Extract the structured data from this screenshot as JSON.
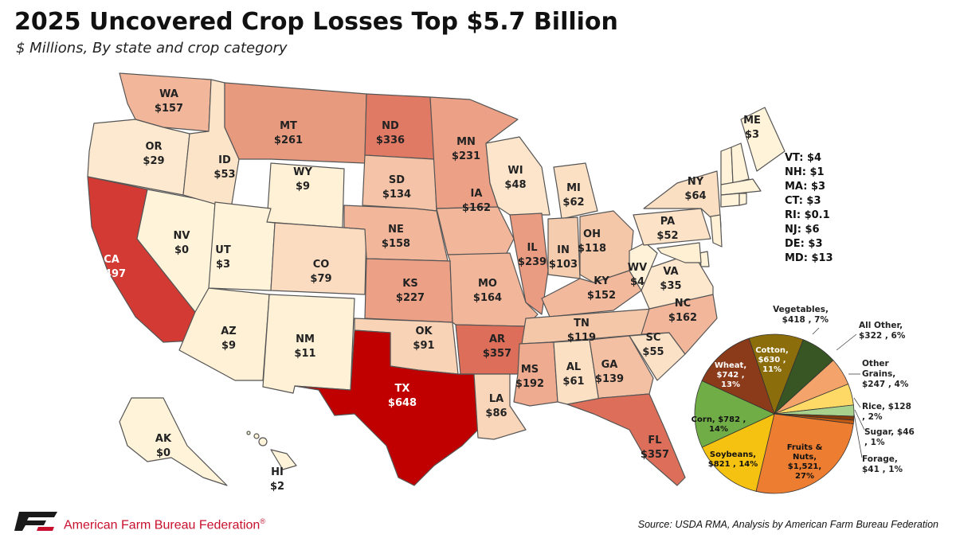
{
  "title": "2025 Uncovered Crop Losses Top $5.7 Billion",
  "subtitle": "$ Millions, By state and crop category",
  "states": [
    {
      "abbr": "WA",
      "value": "$157",
      "color": "#f2b79b"
    },
    {
      "abbr": "OR",
      "value": "$29",
      "color": "#fde9cf"
    },
    {
      "abbr": "CA",
      "value": "$497",
      "color": "#d33a33"
    },
    {
      "abbr": "NV",
      "value": "$0",
      "color": "#fff3da"
    },
    {
      "abbr": "ID",
      "value": "$53",
      "color": "#fce4c9"
    },
    {
      "abbr": "MT",
      "value": "$261",
      "color": "#e89a7f"
    },
    {
      "abbr": "WY",
      "value": "$9",
      "color": "#fff1d6"
    },
    {
      "abbr": "UT",
      "value": "$3",
      "color": "#fff3da"
    },
    {
      "abbr": "AZ",
      "value": "$9",
      "color": "#fff1d6"
    },
    {
      "abbr": "CO",
      "value": "$79",
      "color": "#fbdcc0"
    },
    {
      "abbr": "NM",
      "value": "$11",
      "color": "#fff1d6"
    },
    {
      "abbr": "ND",
      "value": "$336",
      "color": "#e07a64"
    },
    {
      "abbr": "SD",
      "value": "$134",
      "color": "#f5c4a8"
    },
    {
      "abbr": "NE",
      "value": "$158",
      "color": "#f2b79b"
    },
    {
      "abbr": "KS",
      "value": "$227",
      "color": "#eca086"
    },
    {
      "abbr": "OK",
      "value": "$91",
      "color": "#f8d3b6"
    },
    {
      "abbr": "TX",
      "value": "$648",
      "color": "#c00000"
    },
    {
      "abbr": "MN",
      "value": "$231",
      "color": "#eca086"
    },
    {
      "abbr": "IA",
      "value": "$162",
      "color": "#f2b79b"
    },
    {
      "abbr": "MO",
      "value": "$164",
      "color": "#f2b79b"
    },
    {
      "abbr": "AR",
      "value": "$357",
      "color": "#dc6e5a"
    },
    {
      "abbr": "LA",
      "value": "$86",
      "color": "#f9d6b9"
    },
    {
      "abbr": "WI",
      "value": "$48",
      "color": "#fde5cb"
    },
    {
      "abbr": "IL",
      "value": "$239",
      "color": "#ea9c82"
    },
    {
      "abbr": "MI",
      "value": "$62",
      "color": "#fbe0c4"
    },
    {
      "abbr": "IN",
      "value": "$103",
      "color": "#f6ccae"
    },
    {
      "abbr": "OH",
      "value": "$118",
      "color": "#f5c7a9"
    },
    {
      "abbr": "KY",
      "value": "$152",
      "color": "#f3b99d"
    },
    {
      "abbr": "TN",
      "value": "$119",
      "color": "#f5c7a9"
    },
    {
      "abbr": "MS",
      "value": "$192",
      "color": "#efab90"
    },
    {
      "abbr": "AL",
      "value": "$61",
      "color": "#fbe0c4"
    },
    {
      "abbr": "GA",
      "value": "$139",
      "color": "#f4c0a3"
    },
    {
      "abbr": "FL",
      "value": "$357",
      "color": "#dc6e5a"
    },
    {
      "abbr": "SC",
      "value": "$55",
      "color": "#fbe1c6"
    },
    {
      "abbr": "NC",
      "value": "$162",
      "color": "#f2b79b"
    },
    {
      "abbr": "VA",
      "value": "$35",
      "color": "#fde7cd"
    },
    {
      "abbr": "WV",
      "value": "$4",
      "color": "#fff2d8"
    },
    {
      "abbr": "PA",
      "value": "$52",
      "color": "#fce3c8"
    },
    {
      "abbr": "NY",
      "value": "$64",
      "color": "#fbdfc3"
    },
    {
      "abbr": "ME",
      "value": "$3",
      "color": "#fff3da"
    },
    {
      "abbr": "AK",
      "value": "$0",
      "color": "#fff3da"
    },
    {
      "abbr": "HI",
      "value": "$2",
      "color": "#fff3da"
    }
  ],
  "northeast_list": [
    "VT: $4",
    "NH: $1",
    "MA: $3",
    "CT: $3",
    "RI: $0.1",
    "NJ: $6",
    "DE: $3",
    "MD: $13"
  ],
  "pie": {
    "slices": [
      {
        "name": "Fruits & Nuts",
        "value": 1521,
        "label": [
          "Fruits &",
          "Nuts,",
          "$1,521,",
          "27%"
        ],
        "color": "#ed7d31"
      },
      {
        "name": "Soybeans",
        "value": 821,
        "label": [
          "Soybeans,",
          "$821 , 14%"
        ],
        "color": "#f5c211"
      },
      {
        "name": "Corn",
        "value": 782,
        "label": [
          "Corn, $782 ,",
          "14%"
        ],
        "color": "#70ad47"
      },
      {
        "name": "Wheat",
        "value": 742,
        "label": [
          "Wheat,",
          "$742 ,",
          "13%"
        ],
        "color": "#8b3a1a"
      },
      {
        "name": "Cotton",
        "value": 630,
        "label": [
          "Cotton,",
          "$630 ,",
          "11%"
        ],
        "color": "#8c6d0b"
      },
      {
        "name": "Vegetables",
        "value": 418,
        "label": [
          "Vegetables,",
          "$418 , 7%"
        ],
        "color": "#375623"
      },
      {
        "name": "All Other",
        "value": 322,
        "label": [
          "All Other,",
          "$322 , 6%"
        ],
        "color": "#f4a46b"
      },
      {
        "name": "Other Grains",
        "value": 247,
        "label": [
          "Other",
          "Grains,",
          "$247 , 4%"
        ],
        "color": "#ffd966"
      },
      {
        "name": "Rice",
        "value": 128,
        "label": [
          "Rice, $128",
          ", 2%"
        ],
        "color": "#a9d18e"
      },
      {
        "name": "Sugar",
        "value": 46,
        "label": [
          "Sugar, $46",
          ", 1%"
        ],
        "color": "#843c0c"
      },
      {
        "name": "Forage",
        "value": 41,
        "label": [
          "Forage,",
          "$41 , 1%"
        ],
        "color": "#c55a11"
      }
    ]
  },
  "footer": {
    "org": "American Farm Bureau Federation",
    "trademark": "®",
    "source": "Source: USDA RMA, Analysis by American Farm Bureau Federation"
  }
}
